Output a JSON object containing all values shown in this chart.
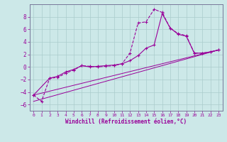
{
  "xlabel": "Windchill (Refroidissement éolien,°C)",
  "bg_color": "#cce8e8",
  "grid_color": "#aacccc",
  "line_color": "#990099",
  "xlim": [
    -0.5,
    23.5
  ],
  "ylim": [
    -7,
    10
  ],
  "yticks": [
    -6,
    -4,
    -2,
    0,
    2,
    4,
    6,
    8
  ],
  "xticks": [
    0,
    1,
    2,
    3,
    4,
    5,
    6,
    7,
    8,
    9,
    10,
    11,
    12,
    13,
    14,
    15,
    16,
    17,
    18,
    19,
    20,
    21,
    22,
    23
  ],
  "line1_x": [
    0,
    1,
    2,
    3,
    4,
    5,
    6,
    7,
    8,
    9,
    10,
    11,
    12,
    13,
    14,
    15,
    16,
    17,
    18,
    19,
    20,
    21,
    22,
    23
  ],
  "line1_y": [
    -4.5,
    -5.5,
    -1.8,
    -1.7,
    -1.0,
    -0.5,
    0.2,
    0.1,
    0.0,
    0.1,
    0.2,
    0.5,
    2.2,
    7.0,
    7.2,
    9.2,
    8.7,
    6.2,
    5.3,
    5.0,
    2.2,
    2.2,
    2.4,
    2.7
  ],
  "line2_x": [
    0,
    2,
    3,
    4,
    5,
    6,
    7,
    8,
    9,
    10,
    11,
    12,
    13,
    14,
    15,
    16,
    17,
    18,
    19,
    20,
    21,
    22,
    23
  ],
  "line2_y": [
    -4.5,
    -1.8,
    -1.5,
    -0.8,
    -0.4,
    0.2,
    0.0,
    0.1,
    0.2,
    0.3,
    0.5,
    1.0,
    1.8,
    3.0,
    3.5,
    8.5,
    6.2,
    5.2,
    4.9,
    2.2,
    2.2,
    2.4,
    2.7
  ],
  "line3_x": [
    0,
    23
  ],
  "line3_y": [
    -4.5,
    2.7
  ],
  "line4_x": [
    0,
    23
  ],
  "line4_y": [
    -5.5,
    2.7
  ]
}
